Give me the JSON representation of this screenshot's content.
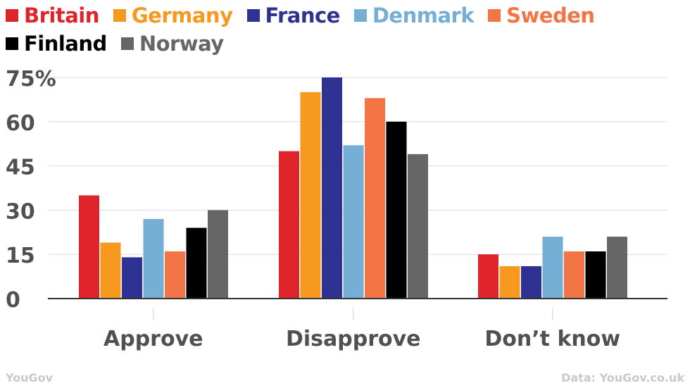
{
  "chart_data": {
    "type": "bar",
    "categories": [
      "Approve",
      "Disapprove",
      "Don’t know"
    ],
    "series": [
      {
        "name": "Britain",
        "color": "#e0242b",
        "values": [
          35,
          50,
          15
        ]
      },
      {
        "name": "Germany",
        "color": "#f7991f",
        "values": [
          19,
          70,
          11
        ]
      },
      {
        "name": "France",
        "color": "#2f3193",
        "values": [
          14,
          75,
          11
        ]
      },
      {
        "name": "Denmark",
        "color": "#75afd6",
        "values": [
          27,
          52,
          21
        ]
      },
      {
        "name": "Sweden",
        "color": "#f37545",
        "values": [
          16,
          68,
          16
        ]
      },
      {
        "name": "Finland",
        "color": "#000000",
        "values": [
          24,
          60,
          16
        ]
      },
      {
        "name": "Norway",
        "color": "#666666",
        "values": [
          30,
          49,
          21
        ]
      }
    ],
    "yticks": [
      "0",
      "15",
      "30",
      "45",
      "60",
      "75%"
    ],
    "ylim": [
      0,
      75
    ],
    "grid": true,
    "legend_position": "top-left"
  },
  "footer": {
    "source_brand": "YouGov",
    "data_credit": "Data: YouGov.co.uk"
  }
}
